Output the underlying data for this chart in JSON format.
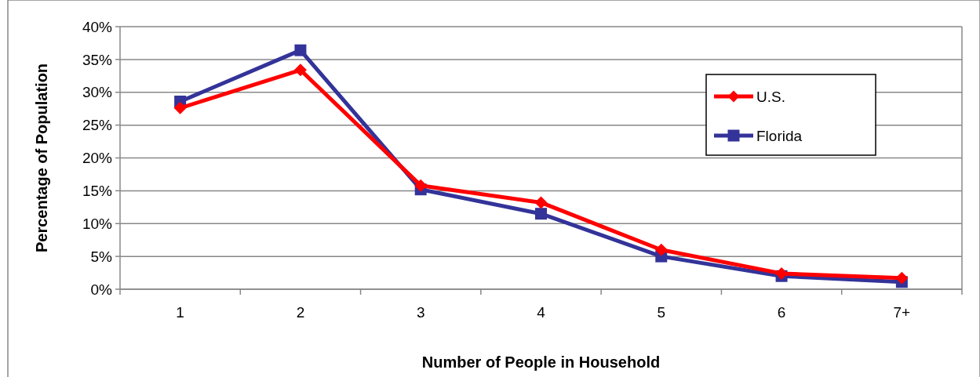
{
  "chart_data": {
    "type": "line",
    "xlabel": "Number of People in Household",
    "ylabel": "Percentage of Population",
    "categories": [
      "1",
      "2",
      "3",
      "4",
      "5",
      "6",
      "7+"
    ],
    "series": [
      {
        "name": "U.S.",
        "color": "#ff0000",
        "marker": "diamond",
        "values": [
          27.6,
          33.4,
          15.8,
          13.2,
          6.0,
          2.4,
          1.7
        ]
      },
      {
        "name": "Florida",
        "color": "#333399",
        "marker": "square",
        "values": [
          28.6,
          36.4,
          15.2,
          11.5,
          5.0,
          2.0,
          1.1
        ]
      }
    ],
    "ylim": [
      0,
      40
    ],
    "yticks": [
      {
        "value": 0,
        "label": "0%"
      },
      {
        "value": 5,
        "label": "5%"
      },
      {
        "value": 10,
        "label": "10%"
      },
      {
        "value": 15,
        "label": "15%"
      },
      {
        "value": 20,
        "label": "20%"
      },
      {
        "value": 25,
        "label": "25%"
      },
      {
        "value": 30,
        "label": "30%"
      },
      {
        "value": 35,
        "label": "35%"
      },
      {
        "value": 40,
        "label": "40%"
      }
    ],
    "grid": "y",
    "legend": "top right"
  }
}
